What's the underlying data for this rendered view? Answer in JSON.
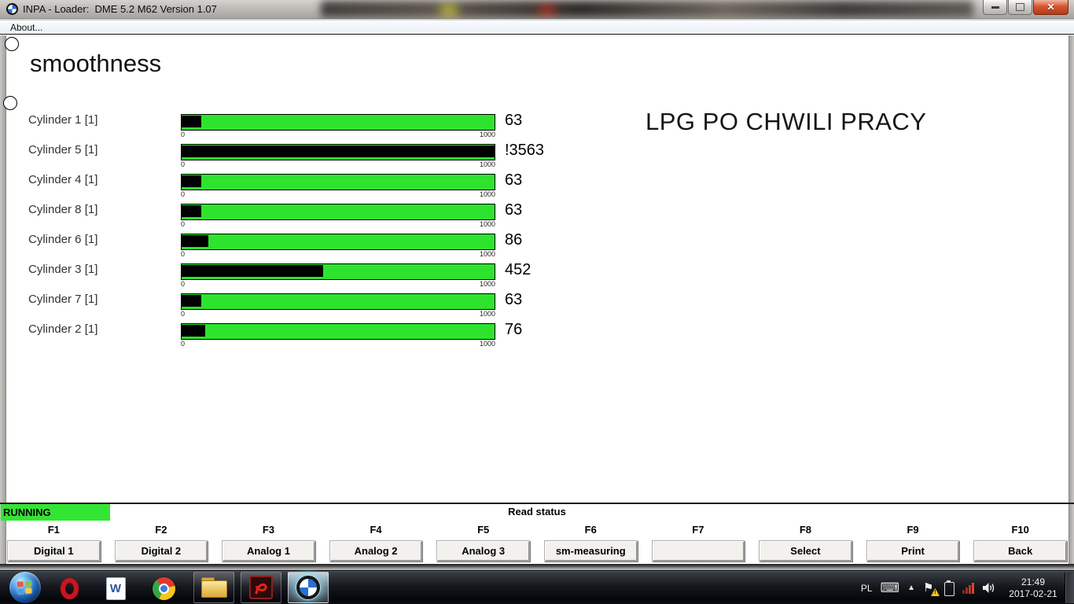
{
  "window": {
    "title": "INPA - Loader:  DME 5.2 M62 Version 1.07",
    "app_icon": "bmw-roundel-icon",
    "menu": [
      "About..."
    ],
    "controls": [
      "minimize-icon",
      "maximize-icon",
      "close-icon"
    ]
  },
  "page": {
    "heading": "smoothness",
    "annotation": "LPG PO CHWILI PRACY"
  },
  "gauges": {
    "scale_min": "0",
    "scale_max": "1000",
    "cylinders": [
      {
        "label": "Cylinder 1 [1]",
        "value": "63",
        "fill_pct": 6.3
      },
      {
        "label": "Cylinder 5 [1]",
        "value": "!3563",
        "fill_pct": 100
      },
      {
        "label": "Cylinder 4 [1]",
        "value": "63",
        "fill_pct": 6.3
      },
      {
        "label": "Cylinder 8 [1]",
        "value": "63",
        "fill_pct": 6.3
      },
      {
        "label": "Cylinder 6 [1]",
        "value": "86",
        "fill_pct": 8.6
      },
      {
        "label": "Cylinder 3 [1]",
        "value": "452",
        "fill_pct": 45.2
      },
      {
        "label": "Cylinder 7 [1]",
        "value": "63",
        "fill_pct": 6.3
      },
      {
        "label": "Cylinder 2 [1]",
        "value": "76",
        "fill_pct": 7.6
      }
    ]
  },
  "statusbar": {
    "running_label": "RUNNING",
    "status_text": "Read status"
  },
  "function_keys": [
    {
      "key": "F1",
      "label": "Digital 1"
    },
    {
      "key": "F2",
      "label": "Digital 2"
    },
    {
      "key": "F3",
      "label": "Analog 1"
    },
    {
      "key": "F4",
      "label": "Analog 2"
    },
    {
      "key": "F5",
      "label": "Analog 3"
    },
    {
      "key": "F6",
      "label": "sm-measuring"
    },
    {
      "key": "F7",
      "label": ""
    },
    {
      "key": "F8",
      "label": "Select"
    },
    {
      "key": "F9",
      "label": "Print"
    },
    {
      "key": "F10",
      "label": "Back"
    }
  ],
  "taskbar": {
    "icons": [
      "start-button",
      "opera-icon",
      "word-icon",
      "chrome-icon",
      "explorer-icon",
      "acrobat-icon",
      "bmw-inpa-icon"
    ],
    "tray": {
      "language": "PL",
      "icons": [
        "keyboard-icon",
        "show-hidden-icons-arrow",
        "action-center-flag-icon",
        "battery-icon",
        "network-signal-icon",
        "volume-icon"
      ],
      "time": "21:49",
      "date": "2017-02-21"
    }
  },
  "colors": {
    "bar_green": "#2ee32e",
    "running_green": "#33e633",
    "bar_fill_black": "#000000"
  }
}
